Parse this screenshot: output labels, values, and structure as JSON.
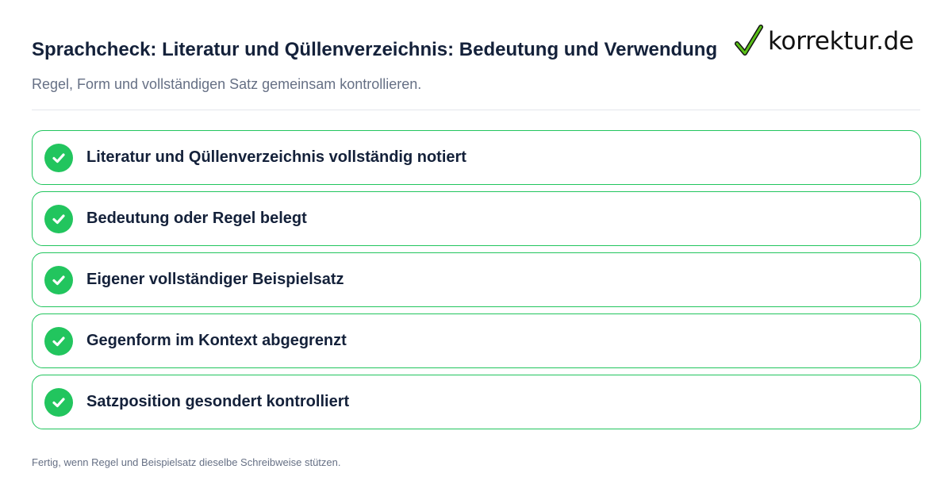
{
  "header": {
    "title": "Sprachcheck: Literatur und Qüllenverzeichnis: Bedeutung und Verwendung",
    "subtitle": "Regel, Form und vollständigen Satz gemeinsam kontrollieren."
  },
  "logo": {
    "text": "korrektur.de",
    "icon": "check-icon"
  },
  "colors": {
    "accent": "#22c55e",
    "title": "#14213a",
    "muted": "#667085"
  },
  "checklist": {
    "items": [
      {
        "label": "Literatur und Qüllenverzeichnis vollständig notiert",
        "icon": "check-circle-icon"
      },
      {
        "label": "Bedeutung oder Regel belegt",
        "icon": "check-circle-icon"
      },
      {
        "label": "Eigener vollständiger Beispielsatz",
        "icon": "check-circle-icon"
      },
      {
        "label": "Gegenform im Kontext abgegrenzt",
        "icon": "check-circle-icon"
      },
      {
        "label": "Satzposition gesondert kontrolliert",
        "icon": "check-circle-icon"
      }
    ]
  },
  "footer": {
    "text": "Fertig, wenn Regel und Beispielsatz dieselbe Schreibweise stützen."
  }
}
